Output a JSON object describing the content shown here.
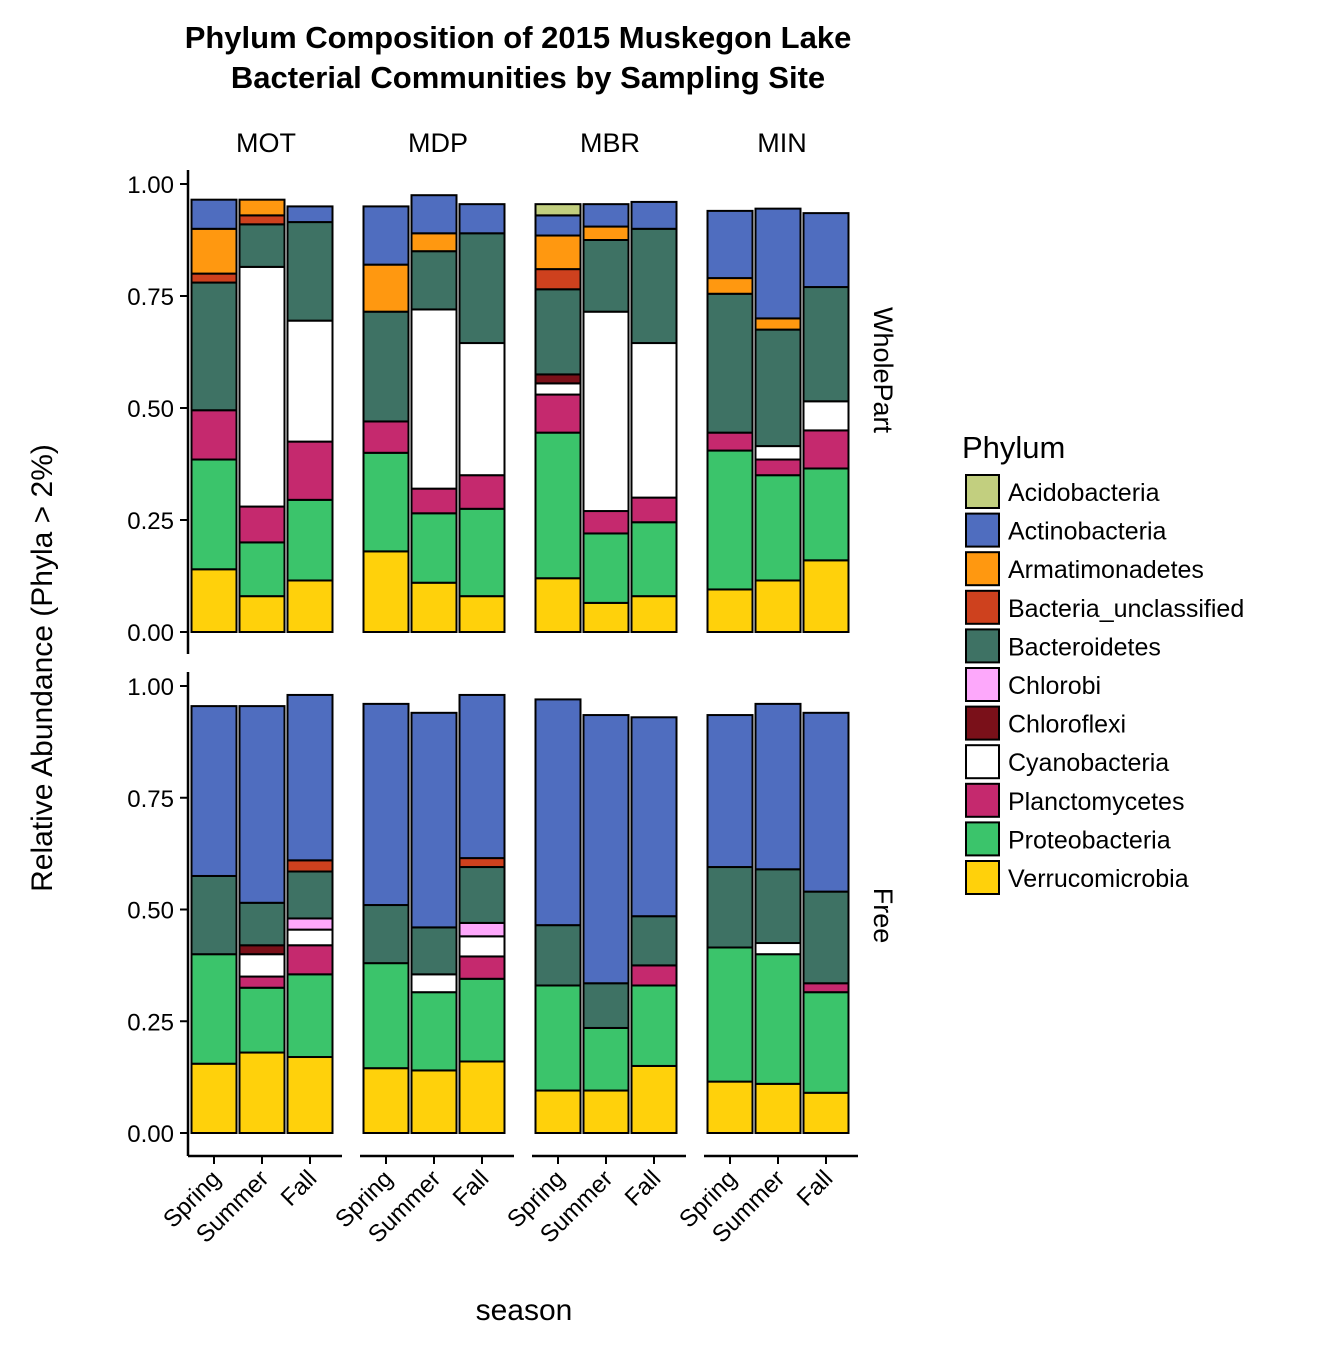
{
  "chart_data": {
    "type": "bar",
    "stacked": true,
    "title": [
      "Phylum Composition of 2015 Muskegon Lake",
      "Bacterial Communities by Sampling Site"
    ],
    "xlabel": "season",
    "ylabel": "Relative Abundance (Phyla > 2%)",
    "ylim": [
      0,
      1
    ],
    "yticks": [
      "0.00",
      "0.25",
      "0.50",
      "0.75",
      "1.00"
    ],
    "categories": [
      "Spring",
      "Summer",
      "Fall"
    ],
    "facet_cols": [
      "MOT",
      "MDP",
      "MBR",
      "MIN"
    ],
    "facet_rows": [
      "WholePart",
      "Free"
    ],
    "legend": {
      "title": "Phylum",
      "position": "right",
      "items": [
        {
          "name": "Acidobacteria",
          "color": "#C2CF7F"
        },
        {
          "name": "Actinobacteria",
          "color": "#4F6DBF"
        },
        {
          "name": "Armatimonadetes",
          "color": "#FF9810"
        },
        {
          "name": "Bacteria_unclassified",
          "color": "#CE411E"
        },
        {
          "name": "Bacteroidetes",
          "color": "#3E7264"
        },
        {
          "name": "Chlorobi",
          "color": "#FDA8FB"
        },
        {
          "name": "Chloroflexi",
          "color": "#7A1019"
        },
        {
          "name": "Cyanobacteria",
          "color": "#FFFFFF"
        },
        {
          "name": "Planctomycetes",
          "color": "#C5296E"
        },
        {
          "name": "Proteobacteria",
          "color": "#3BC46B"
        },
        {
          "name": "Verrucomicrobia",
          "color": "#FFD10B"
        }
      ]
    },
    "panels": [
      {
        "row": "WholePart",
        "col": "MOT",
        "bars": [
          {
            "season": "Spring",
            "stack": [
              [
                "Verrucomicrobia",
                0.14
              ],
              [
                "Proteobacteria",
                0.245
              ],
              [
                "Planctomycetes",
                0.11
              ],
              [
                "Bacteroidetes",
                0.285
              ],
              [
                "Bacteria_unclassified",
                0.02
              ],
              [
                "Armatimonadetes",
                0.1
              ],
              [
                "Actinobacteria",
                0.065
              ]
            ]
          },
          {
            "season": "Summer",
            "stack": [
              [
                "Verrucomicrobia",
                0.08
              ],
              [
                "Proteobacteria",
                0.12
              ],
              [
                "Planctomycetes",
                0.08
              ],
              [
                "Cyanobacteria",
                0.535
              ],
              [
                "Bacteroidetes",
                0.095
              ],
              [
                "Bacteria_unclassified",
                0.02
              ],
              [
                "Armatimonadetes",
                0.035
              ]
            ]
          },
          {
            "season": "Fall",
            "stack": [
              [
                "Verrucomicrobia",
                0.115
              ],
              [
                "Proteobacteria",
                0.18
              ],
              [
                "Planctomycetes",
                0.13
              ],
              [
                "Cyanobacteria",
                0.27
              ],
              [
                "Bacteroidetes",
                0.22
              ],
              [
                "Actinobacteria",
                0.035
              ]
            ]
          }
        ]
      },
      {
        "row": "WholePart",
        "col": "MDP",
        "bars": [
          {
            "season": "Spring",
            "stack": [
              [
                "Verrucomicrobia",
                0.18
              ],
              [
                "Proteobacteria",
                0.22
              ],
              [
                "Planctomycetes",
                0.07
              ],
              [
                "Bacteroidetes",
                0.245
              ],
              [
                "Armatimonadetes",
                0.105
              ],
              [
                "Actinobacteria",
                0.13
              ]
            ]
          },
          {
            "season": "Summer",
            "stack": [
              [
                "Verrucomicrobia",
                0.11
              ],
              [
                "Proteobacteria",
                0.155
              ],
              [
                "Planctomycetes",
                0.055
              ],
              [
                "Cyanobacteria",
                0.4
              ],
              [
                "Bacteroidetes",
                0.13
              ],
              [
                "Armatimonadetes",
                0.04
              ],
              [
                "Actinobacteria",
                0.085
              ]
            ]
          },
          {
            "season": "Fall",
            "stack": [
              [
                "Verrucomicrobia",
                0.08
              ],
              [
                "Proteobacteria",
                0.195
              ],
              [
                "Planctomycetes",
                0.075
              ],
              [
                "Cyanobacteria",
                0.295
              ],
              [
                "Bacteroidetes",
                0.245
              ],
              [
                "Actinobacteria",
                0.065
              ]
            ]
          }
        ]
      },
      {
        "row": "WholePart",
        "col": "MBR",
        "bars": [
          {
            "season": "Spring",
            "stack": [
              [
                "Verrucomicrobia",
                0.12
              ],
              [
                "Proteobacteria",
                0.325
              ],
              [
                "Planctomycetes",
                0.085
              ],
              [
                "Cyanobacteria",
                0.025
              ],
              [
                "Chloroflexi",
                0.02
              ],
              [
                "Bacteroidetes",
                0.19
              ],
              [
                "Bacteria_unclassified",
                0.045
              ],
              [
                "Armatimonadetes",
                0.075
              ],
              [
                "Actinobacteria",
                0.045
              ],
              [
                "Acidobacteria",
                0.025
              ]
            ]
          },
          {
            "season": "Summer",
            "stack": [
              [
                "Verrucomicrobia",
                0.065
              ],
              [
                "Proteobacteria",
                0.155
              ],
              [
                "Planctomycetes",
                0.05
              ],
              [
                "Cyanobacteria",
                0.445
              ],
              [
                "Bacteroidetes",
                0.16
              ],
              [
                "Armatimonadetes",
                0.03
              ],
              [
                "Actinobacteria",
                0.05
              ]
            ]
          },
          {
            "season": "Fall",
            "stack": [
              [
                "Verrucomicrobia",
                0.08
              ],
              [
                "Proteobacteria",
                0.165
              ],
              [
                "Planctomycetes",
                0.055
              ],
              [
                "Cyanobacteria",
                0.345
              ],
              [
                "Bacteroidetes",
                0.255
              ],
              [
                "Actinobacteria",
                0.06
              ]
            ]
          }
        ]
      },
      {
        "row": "WholePart",
        "col": "MIN",
        "bars": [
          {
            "season": "Spring",
            "stack": [
              [
                "Verrucomicrobia",
                0.095
              ],
              [
                "Proteobacteria",
                0.31
              ],
              [
                "Planctomycetes",
                0.04
              ],
              [
                "Bacteroidetes",
                0.31
              ],
              [
                "Armatimonadetes",
                0.035
              ],
              [
                "Actinobacteria",
                0.15
              ]
            ]
          },
          {
            "season": "Summer",
            "stack": [
              [
                "Verrucomicrobia",
                0.115
              ],
              [
                "Proteobacteria",
                0.235
              ],
              [
                "Planctomycetes",
                0.035
              ],
              [
                "Cyanobacteria",
                0.03
              ],
              [
                "Bacteroidetes",
                0.26
              ],
              [
                "Armatimonadetes",
                0.025
              ],
              [
                "Actinobacteria",
                0.245
              ]
            ]
          },
          {
            "season": "Fall",
            "stack": [
              [
                "Verrucomicrobia",
                0.16
              ],
              [
                "Proteobacteria",
                0.205
              ],
              [
                "Planctomycetes",
                0.085
              ],
              [
                "Cyanobacteria",
                0.065
              ],
              [
                "Bacteroidetes",
                0.255
              ],
              [
                "Actinobacteria",
                0.165
              ]
            ]
          }
        ]
      },
      {
        "row": "Free",
        "col": "MOT",
        "bars": [
          {
            "season": "Spring",
            "stack": [
              [
                "Verrucomicrobia",
                0.155
              ],
              [
                "Proteobacteria",
                0.245
              ],
              [
                "Bacteroidetes",
                0.175
              ],
              [
                "Actinobacteria",
                0.38
              ]
            ]
          },
          {
            "season": "Summer",
            "stack": [
              [
                "Verrucomicrobia",
                0.18
              ],
              [
                "Proteobacteria",
                0.145
              ],
              [
                "Planctomycetes",
                0.025
              ],
              [
                "Cyanobacteria",
                0.05
              ],
              [
                "Chloroflexi",
                0.02
              ],
              [
                "Bacteroidetes",
                0.095
              ],
              [
                "Actinobacteria",
                0.44
              ]
            ]
          },
          {
            "season": "Fall",
            "stack": [
              [
                "Verrucomicrobia",
                0.17
              ],
              [
                "Proteobacteria",
                0.185
              ],
              [
                "Planctomycetes",
                0.065
              ],
              [
                "Cyanobacteria",
                0.035
              ],
              [
                "Chlorobi",
                0.025
              ],
              [
                "Bacteroidetes",
                0.105
              ],
              [
                "Bacteria_unclassified",
                0.025
              ],
              [
                "Actinobacteria",
                0.37
              ]
            ]
          }
        ]
      },
      {
        "row": "Free",
        "col": "MDP",
        "bars": [
          {
            "season": "Spring",
            "stack": [
              [
                "Verrucomicrobia",
                0.145
              ],
              [
                "Proteobacteria",
                0.235
              ],
              [
                "Bacteroidetes",
                0.13
              ],
              [
                "Actinobacteria",
                0.45
              ]
            ]
          },
          {
            "season": "Summer",
            "stack": [
              [
                "Verrucomicrobia",
                0.14
              ],
              [
                "Proteobacteria",
                0.175
              ],
              [
                "Cyanobacteria",
                0.04
              ],
              [
                "Bacteroidetes",
                0.105
              ],
              [
                "Actinobacteria",
                0.48
              ]
            ]
          },
          {
            "season": "Fall",
            "stack": [
              [
                "Verrucomicrobia",
                0.16
              ],
              [
                "Proteobacteria",
                0.185
              ],
              [
                "Planctomycetes",
                0.05
              ],
              [
                "Cyanobacteria",
                0.045
              ],
              [
                "Chlorobi",
                0.03
              ],
              [
                "Bacteroidetes",
                0.125
              ],
              [
                "Bacteria_unclassified",
                0.02
              ],
              [
                "Actinobacteria",
                0.365
              ]
            ]
          }
        ]
      },
      {
        "row": "Free",
        "col": "MBR",
        "bars": [
          {
            "season": "Spring",
            "stack": [
              [
                "Verrucomicrobia",
                0.095
              ],
              [
                "Proteobacteria",
                0.235
              ],
              [
                "Bacteroidetes",
                0.135
              ],
              [
                "Actinobacteria",
                0.505
              ]
            ]
          },
          {
            "season": "Summer",
            "stack": [
              [
                "Verrucomicrobia",
                0.095
              ],
              [
                "Proteobacteria",
                0.14
              ],
              [
                "Bacteroidetes",
                0.1
              ],
              [
                "Actinobacteria",
                0.6
              ]
            ]
          },
          {
            "season": "Fall",
            "stack": [
              [
                "Verrucomicrobia",
                0.15
              ],
              [
                "Proteobacteria",
                0.18
              ],
              [
                "Planctomycetes",
                0.045
              ],
              [
                "Bacteroidetes",
                0.11
              ],
              [
                "Actinobacteria",
                0.445
              ]
            ]
          }
        ]
      },
      {
        "row": "Free",
        "col": "MIN",
        "bars": [
          {
            "season": "Spring",
            "stack": [
              [
                "Verrucomicrobia",
                0.115
              ],
              [
                "Proteobacteria",
                0.3
              ],
              [
                "Bacteroidetes",
                0.18
              ],
              [
                "Actinobacteria",
                0.34
              ]
            ]
          },
          {
            "season": "Summer",
            "stack": [
              [
                "Verrucomicrobia",
                0.11
              ],
              [
                "Proteobacteria",
                0.29
              ],
              [
                "Cyanobacteria",
                0.025
              ],
              [
                "Bacteroidetes",
                0.165
              ],
              [
                "Actinobacteria",
                0.37
              ]
            ]
          },
          {
            "season": "Fall",
            "stack": [
              [
                "Verrucomicrobia",
                0.09
              ],
              [
                "Proteobacteria",
                0.225
              ],
              [
                "Planctomycetes",
                0.02
              ],
              [
                "Bacteroidetes",
                0.205
              ],
              [
                "Actinobacteria",
                0.4
              ]
            ]
          }
        ]
      }
    ]
  }
}
